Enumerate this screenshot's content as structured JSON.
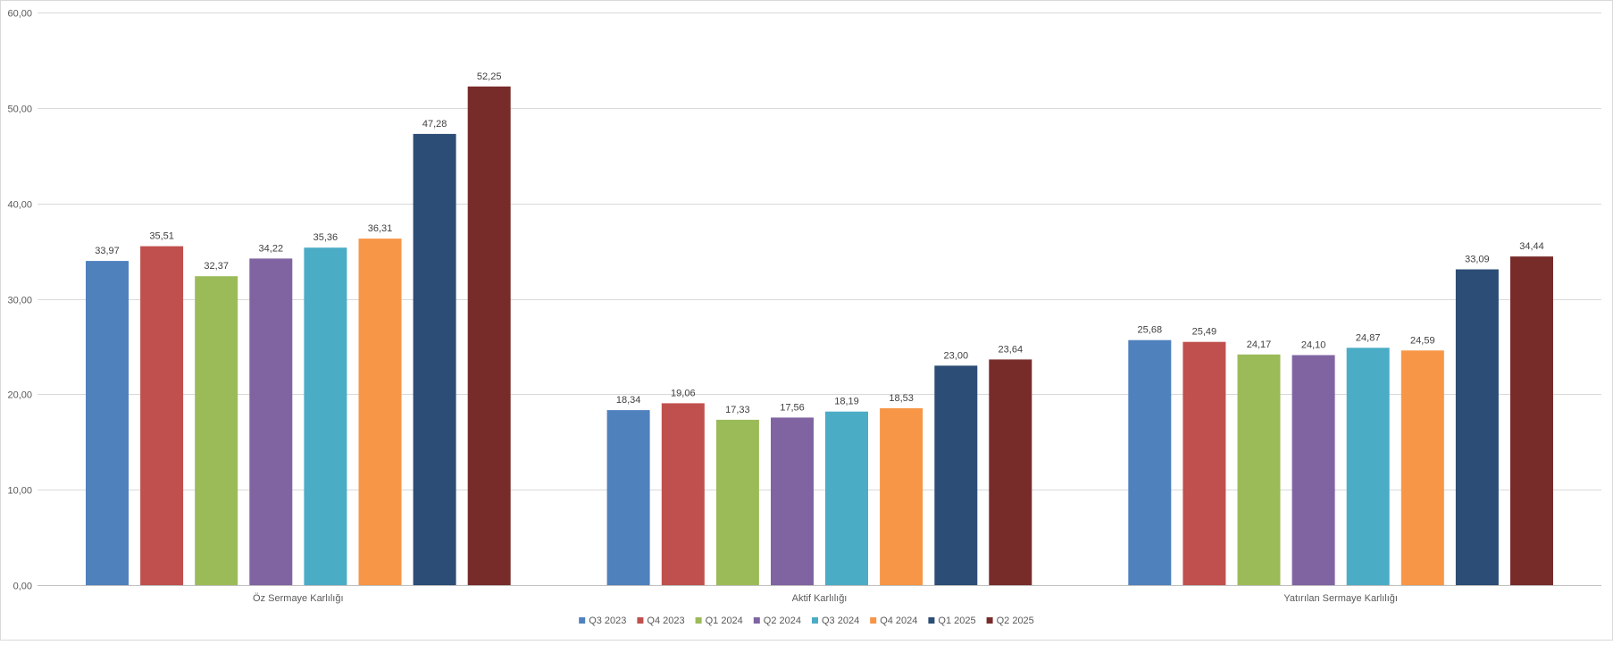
{
  "chart_data": {
    "type": "bar",
    "title": "",
    "xlabel": "",
    "ylabel": "",
    "ylim": [
      0,
      60
    ],
    "yticks": [
      "0,00",
      "10,00",
      "20,00",
      "30,00",
      "40,00",
      "50,00",
      "60,00"
    ],
    "grid": true,
    "legend_position": "bottom",
    "categories": [
      "Öz Sermaye Karlılığı",
      "Aktif Karlılığı",
      "Yatırılan Sermaye Karlılığı"
    ],
    "series": [
      {
        "name": "Q3 2023",
        "color": "#4f81bd",
        "values": [
          33.97,
          18.34,
          25.68
        ],
        "labels": [
          "33,97",
          "18,34",
          "25,68"
        ]
      },
      {
        "name": "Q4 2023",
        "color": "#c0504d",
        "values": [
          35.51,
          19.06,
          25.49
        ],
        "labels": [
          "35,51",
          "19,06",
          "25,49"
        ]
      },
      {
        "name": "Q1 2024",
        "color": "#9bbb59",
        "values": [
          32.37,
          17.33,
          24.17
        ],
        "labels": [
          "32,37",
          "17,33",
          "24,17"
        ]
      },
      {
        "name": "Q2 2024",
        "color": "#8064a2",
        "values": [
          34.22,
          17.56,
          24.1
        ],
        "labels": [
          "34,22",
          "17,56",
          "24,10"
        ]
      },
      {
        "name": "Q3 2024",
        "color": "#4bacc6",
        "values": [
          35.36,
          18.19,
          24.87
        ],
        "labels": [
          "35,36",
          "18,19",
          "24,87"
        ]
      },
      {
        "name": "Q4 2024",
        "color": "#f79646",
        "values": [
          36.31,
          18.53,
          24.59
        ],
        "labels": [
          "36,31",
          "18,53",
          "24,59"
        ]
      },
      {
        "name": "Q1 2025",
        "color": "#2c4d75",
        "values": [
          47.28,
          23.0,
          33.09
        ],
        "labels": [
          "47,28",
          "23,00",
          "33,09"
        ]
      },
      {
        "name": "Q2 2025",
        "color": "#772c2a",
        "values": [
          52.25,
          23.64,
          34.44
        ],
        "labels": [
          "52,25",
          "23,64",
          "34,44"
        ]
      }
    ]
  }
}
